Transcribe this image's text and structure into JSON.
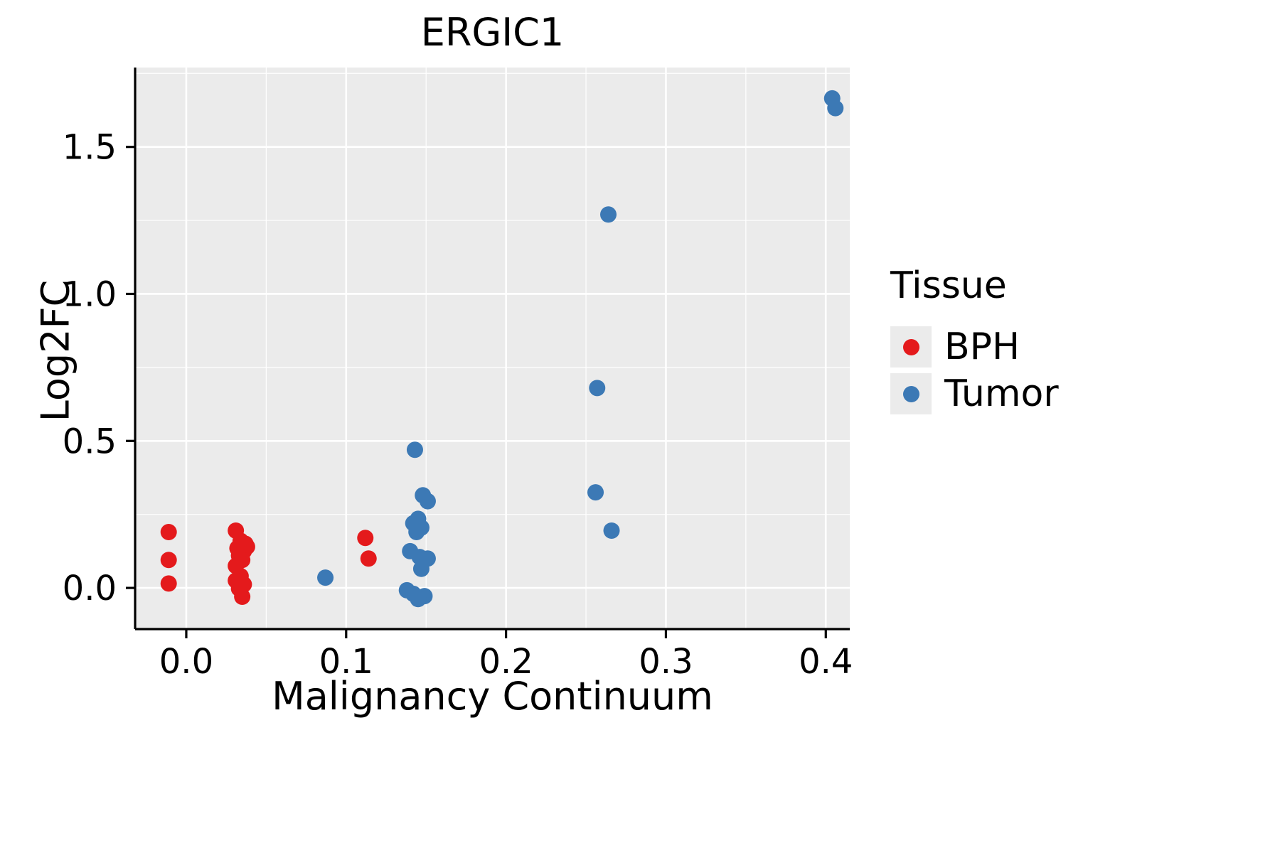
{
  "figure": {
    "background": "#FFFFFF"
  },
  "chart_data": {
    "type": "scatter",
    "title": "ERGIC1",
    "xlabel": "Malignancy Continuum",
    "ylabel": "Log2FC",
    "legend_title": "Tissue",
    "legend_position": "right",
    "grid": true,
    "panel_background": "#EBEBEB",
    "grid_color": "#FFFFFF",
    "axis_color": "#000000",
    "xlim": [
      -0.032,
      0.415
    ],
    "ylim": [
      -0.14,
      1.77
    ],
    "x_ticks": [
      0.0,
      0.1,
      0.2,
      0.3,
      0.4
    ],
    "y_ticks": [
      0.0,
      0.5,
      1.0,
      1.5
    ],
    "x_tick_labels": [
      "0.0",
      "0.1",
      "0.2",
      "0.3",
      "0.4"
    ],
    "y_tick_labels": [
      "0.0",
      "0.5",
      "1.0",
      "1.5"
    ],
    "point_radius_px": 11.5,
    "series": [
      {
        "name": "BPH",
        "color": "#E41A1C",
        "points": [
          [
            -0.011,
            0.19
          ],
          [
            -0.011,
            0.095
          ],
          [
            -0.011,
            0.015
          ],
          [
            0.031,
            0.195
          ],
          [
            0.034,
            0.16
          ],
          [
            0.037,
            0.15
          ],
          [
            0.032,
            0.135
          ],
          [
            0.038,
            0.14
          ],
          [
            0.036,
            0.125
          ],
          [
            0.033,
            0.11
          ],
          [
            0.035,
            0.095
          ],
          [
            0.031,
            0.075
          ],
          [
            0.034,
            0.04
          ],
          [
            0.031,
            0.025
          ],
          [
            0.036,
            0.012
          ],
          [
            0.033,
            -0.002
          ],
          [
            0.035,
            -0.03
          ],
          [
            0.112,
            0.17
          ],
          [
            0.114,
            0.1
          ]
        ]
      },
      {
        "name": "Tumor",
        "color": "#3C79B5",
        "points": [
          [
            0.087,
            0.035
          ],
          [
            0.143,
            0.47
          ],
          [
            0.148,
            0.315
          ],
          [
            0.151,
            0.295
          ],
          [
            0.145,
            0.235
          ],
          [
            0.142,
            0.22
          ],
          [
            0.147,
            0.205
          ],
          [
            0.144,
            0.19
          ],
          [
            0.14,
            0.125
          ],
          [
            0.146,
            0.105
          ],
          [
            0.151,
            0.1
          ],
          [
            0.147,
            0.065
          ],
          [
            0.138,
            -0.008
          ],
          [
            0.142,
            -0.02
          ],
          [
            0.149,
            -0.028
          ],
          [
            0.145,
            -0.038
          ],
          [
            0.264,
            1.27
          ],
          [
            0.257,
            0.68
          ],
          [
            0.256,
            0.325
          ],
          [
            0.266,
            0.195
          ],
          [
            0.404,
            1.665
          ],
          [
            0.406,
            1.632
          ]
        ]
      }
    ]
  }
}
